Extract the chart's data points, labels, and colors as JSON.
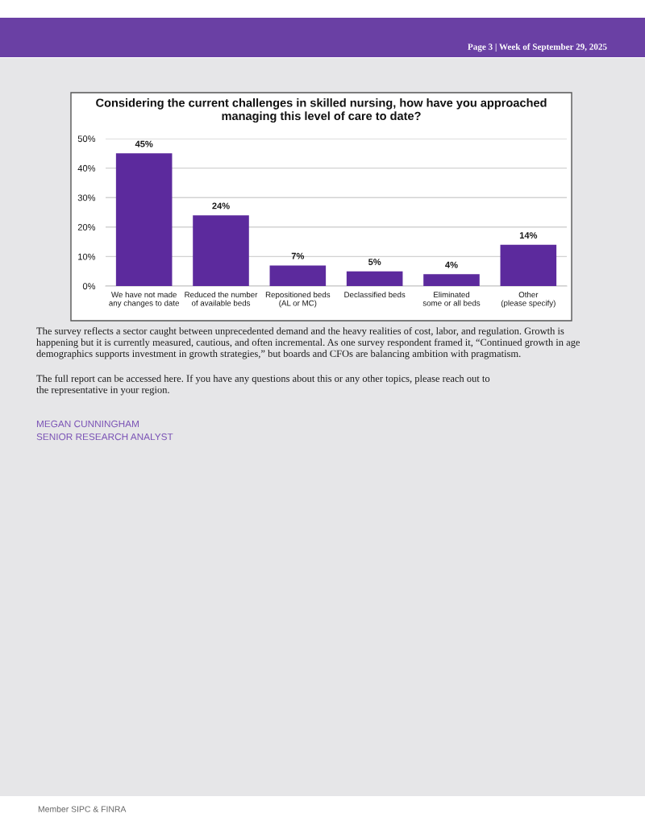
{
  "chart_data": {
    "type": "bar",
    "title": "Considering the current challenges in skilled nursing, how have you approached\nmanaging this level of care to date?",
    "categories": [
      "We have not made\nany changes to date",
      "Reduced the number\nof available beds",
      "Repositioned beds\n(AL or MC)",
      "Declassified beds",
      "Eliminated\nsome or all beds",
      "Other\n(please specify)"
    ],
    "values": [
      45,
      24,
      7,
      5,
      4,
      14
    ],
    "color": "#5c2a9d",
    "value_labels": [
      "45%",
      "24%",
      "7%",
      "5%",
      "4%",
      "14%"
    ],
    "ylim": [
      0,
      50
    ],
    "yticks": [
      {
        "value": 0,
        "label": "0%"
      },
      {
        "value": 10,
        "label": "10%"
      },
      {
        "value": 20,
        "label": "20%"
      },
      {
        "value": 30,
        "label": "30%"
      },
      {
        "value": 40,
        "label": "40%"
      },
      {
        "value": 50,
        "label": "50%"
      }
    ],
    "grid": "y",
    "annotations": [
      "Page 3 | Week of September 29, 2025",
      "The survey reflects a sector caught between unprecedented demand and the heavy realities of cost, labor, and regulation. Growth is\nhappening but it is currently measured, cautious, and often incremental. As one survey respondent framed it, “Continued growth in age\ndemographics supports investment in growth strategies,” but boards and CFOs are balancing ambition with pragmatism.",
      "The full report can be accessed here. If you have any questions about this or any other topics, please reach out to\nthe representative in your region.",
      "MEGAN CUNNINGHAM",
      "SENIOR RESEARCH ANALYST",
      "Member SIPC & FINRA"
    ]
  }
}
